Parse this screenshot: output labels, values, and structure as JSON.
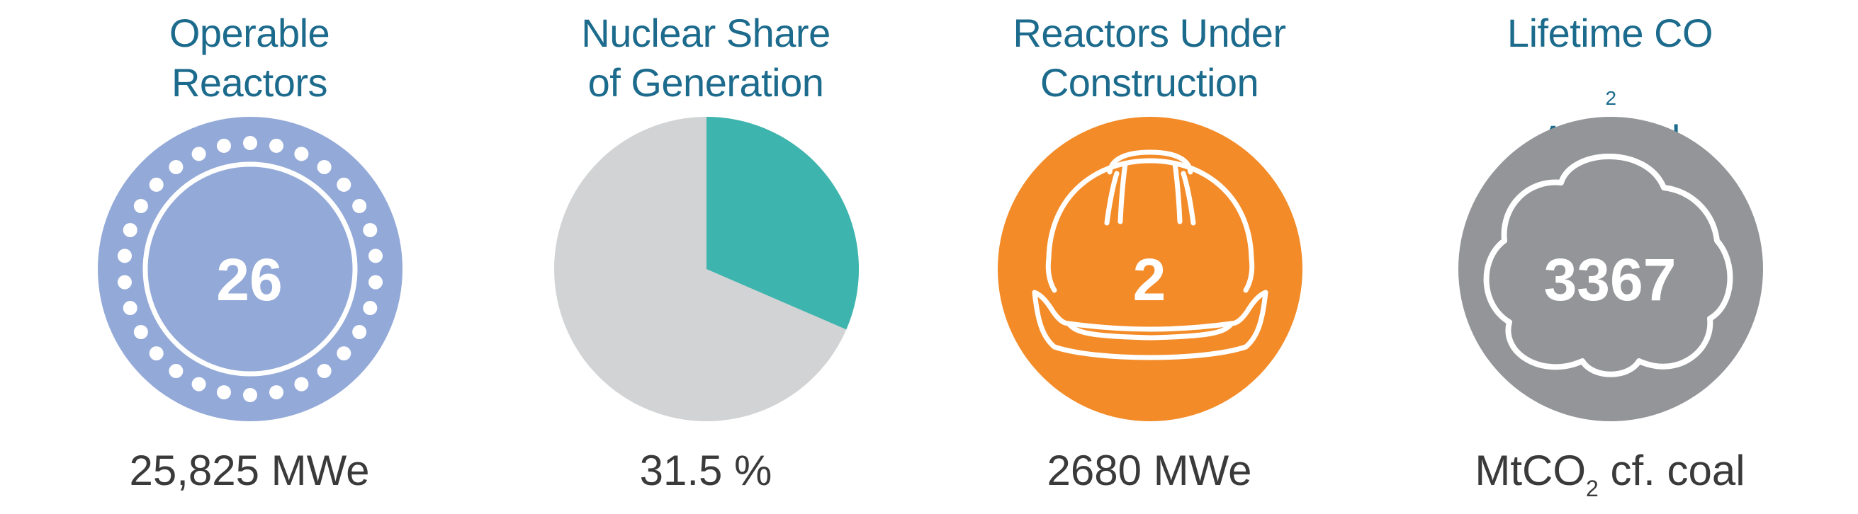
{
  "panels": {
    "reactors": {
      "title_line1": "Operable",
      "title_line2": "Reactors",
      "value": "26",
      "caption": "25,825 MWe",
      "icon": "reactor-core-icon",
      "color": "#93a9d8"
    },
    "share": {
      "title_line1": "Nuclear Share",
      "title_line2": "of Generation",
      "share_percent": 31.5,
      "caption": "31.5 %",
      "icon": "pie-chart-icon",
      "colors": {
        "nuclear": "#3db5ae",
        "other": "#d1d3d4"
      }
    },
    "construction": {
      "title_line1": "Reactors Under",
      "title_line2": "Construction",
      "value": "2",
      "caption": "2680 MWe",
      "icon": "hard-hat-icon",
      "color": "#f38b28"
    },
    "co2": {
      "title_line1_main": "Lifetime CO",
      "title_line1_sub": "2",
      "title_line2": "Avoided",
      "value": "3367",
      "caption_main": "MtCO",
      "caption_sub": "2",
      "caption_rest": " cf. coal",
      "icon": "cloud-icon",
      "color": "#939598"
    }
  }
}
